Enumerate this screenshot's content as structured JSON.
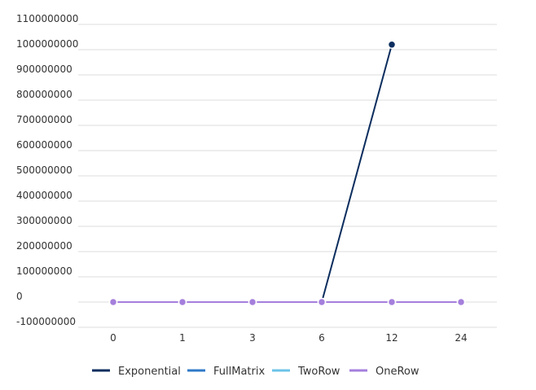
{
  "chart_data": {
    "type": "line",
    "title": "",
    "xlabel": "",
    "ylabel": "",
    "categories": [
      "0",
      "1",
      "3",
      "6",
      "12",
      "24"
    ],
    "ylim": [
      -100000000,
      1100000000
    ],
    "yticks": [
      -100000000,
      0,
      100000000,
      200000000,
      300000000,
      400000000,
      500000000,
      600000000,
      700000000,
      800000000,
      900000000,
      1000000000,
      1100000000
    ],
    "ytick_labels": [
      "-100000000",
      "0",
      "100000000",
      "200000000",
      "300000000",
      "400000000",
      "500000000",
      "600000000",
      "700000000",
      "800000000",
      "900000000",
      "1000000000",
      "1100000000"
    ],
    "grid": true,
    "legend_position": "bottom-center",
    "series": [
      {
        "name": "Exponential",
        "color": "#0b2d5e",
        "values": [
          null,
          null,
          null,
          null,
          1020000000,
          null
        ],
        "markers": [
          false,
          false,
          false,
          false,
          true,
          false
        ],
        "segment_from": {
          "category": "6",
          "value": 0
        }
      },
      {
        "name": "FullMatrix",
        "color": "#2f79c8",
        "values": [
          0,
          0,
          0,
          0,
          0,
          0
        ]
      },
      {
        "name": "TwoRow",
        "color": "#6cc3e8",
        "values": [
          0,
          0,
          0,
          0,
          0,
          0
        ]
      },
      {
        "name": "OneRow",
        "color": "#a57fdc",
        "values": [
          0,
          0,
          0,
          0,
          0,
          0
        ]
      }
    ]
  }
}
